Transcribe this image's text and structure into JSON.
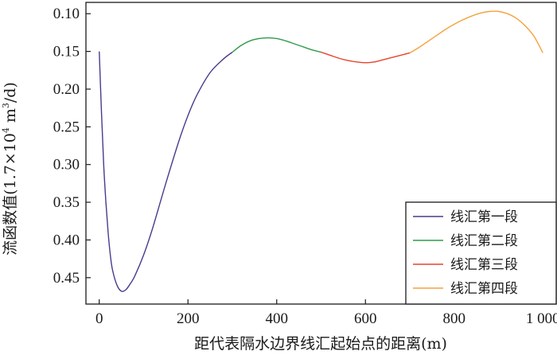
{
  "chart_data": {
    "type": "line",
    "xlabel": "距代表隔水边界线汇起始点的距离(m)",
    "ylabel": "流函数值(1.7×10⁴ m³/d)",
    "ylabel_parts": {
      "prefix": "流函数值(1.7×10",
      "exp1": "4",
      "mid": " m",
      "exp2": "3",
      "suffix": "/d)"
    },
    "xlim": [
      -30,
      1030
    ],
    "ylim": [
      0.085,
      0.485
    ],
    "y_inverted": true,
    "xticks": [
      0,
      200,
      400,
      600,
      800,
      1000
    ],
    "xtick_labels": [
      "0",
      "200",
      "400",
      "600",
      "800",
      "1 000"
    ],
    "yticks": [
      0.1,
      0.15,
      0.2,
      0.25,
      0.3,
      0.35,
      0.4,
      0.45
    ],
    "ytick_labels": [
      "0.10",
      "0.15",
      "0.20",
      "0.25",
      "0.30",
      "0.35",
      "0.40",
      "0.45"
    ],
    "legend_position": "bottom-right",
    "series": [
      {
        "name": "线汇第一段",
        "color": "#4b3a8c",
        "x": [
          0,
          5,
          10,
          15,
          20,
          25,
          30,
          40,
          50,
          60,
          70,
          80,
          100,
          120,
          150,
          180,
          200,
          220,
          250,
          280,
          300
        ],
        "y": [
          0.15,
          0.23,
          0.3,
          0.35,
          0.39,
          0.42,
          0.44,
          0.46,
          0.468,
          0.466,
          0.458,
          0.448,
          0.42,
          0.385,
          0.325,
          0.268,
          0.235,
          0.208,
          0.178,
          0.16,
          0.151
        ]
      },
      {
        "name": "线汇第二段",
        "color": "#2e9b4a",
        "x": [
          300,
          320,
          340,
          360,
          380,
          400,
          420,
          440,
          460,
          480,
          500
        ],
        "y": [
          0.151,
          0.142,
          0.136,
          0.133,
          0.132,
          0.133,
          0.136,
          0.14,
          0.144,
          0.148,
          0.151
        ]
      },
      {
        "name": "线汇第三段",
        "color": "#e5442c",
        "x": [
          500,
          520,
          540,
          560,
          580,
          600,
          620,
          640,
          660,
          680,
          700
        ],
        "y": [
          0.151,
          0.155,
          0.159,
          0.162,
          0.164,
          0.165,
          0.164,
          0.161,
          0.158,
          0.155,
          0.152
        ]
      },
      {
        "name": "线汇第四段",
        "color": "#f5a23c",
        "x": [
          700,
          720,
          740,
          760,
          780,
          800,
          820,
          840,
          860,
          880,
          900,
          920,
          940,
          960,
          980,
          1000
        ],
        "y": [
          0.152,
          0.145,
          0.137,
          0.129,
          0.121,
          0.114,
          0.108,
          0.103,
          0.099,
          0.097,
          0.097,
          0.1,
          0.106,
          0.116,
          0.13,
          0.152
        ]
      }
    ]
  }
}
